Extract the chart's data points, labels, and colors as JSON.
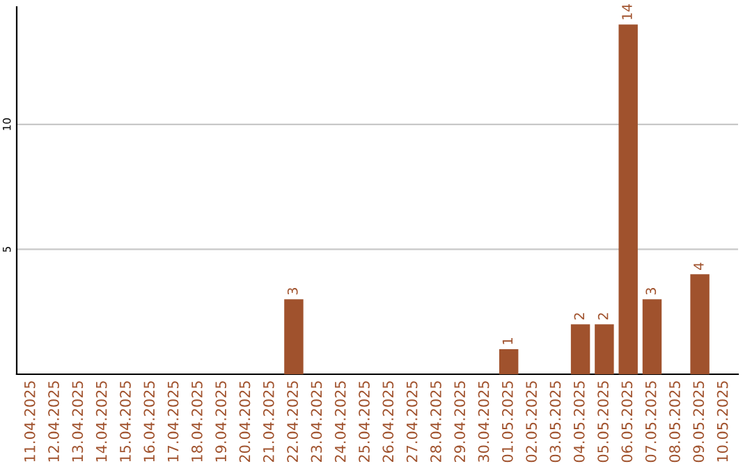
{
  "chart_data": {
    "type": "bar",
    "categories": [
      "11.04.2025",
      "12.04.2025",
      "13.04.2025",
      "14.04.2025",
      "15.04.2025",
      "16.04.2025",
      "17.04.2025",
      "18.04.2025",
      "19.04.2025",
      "20.04.2025",
      "21.04.2025",
      "22.04.2025",
      "23.04.2025",
      "24.04.2025",
      "25.04.2025",
      "26.04.2025",
      "27.04.2025",
      "28.04.2025",
      "29.04.2025",
      "30.04.2025",
      "01.05.2025",
      "02.05.2025",
      "03.05.2025",
      "04.05.2025",
      "05.05.2025",
      "06.05.2025",
      "07.05.2025",
      "08.05.2025",
      "09.05.2025",
      "10.05.2025"
    ],
    "values": [
      0,
      0,
      0,
      0,
      0,
      0,
      0,
      0,
      0,
      0,
      0,
      3,
      0,
      0,
      0,
      0,
      0,
      0,
      0,
      0,
      1,
      0,
      0,
      2,
      2,
      14,
      3,
      0,
      4,
      0
    ],
    "value_labels": [
      null,
      null,
      null,
      null,
      null,
      null,
      null,
      null,
      null,
      null,
      null,
      "3",
      null,
      null,
      null,
      null,
      null,
      null,
      null,
      null,
      "1",
      null,
      null,
      "2",
      "2",
      "14",
      "3",
      null,
      "4",
      null
    ],
    "color": "#a0522d",
    "ylim": [
      0,
      14.7
    ],
    "yticks": [
      5,
      10
    ],
    "grid": "y",
    "legend": false
  }
}
